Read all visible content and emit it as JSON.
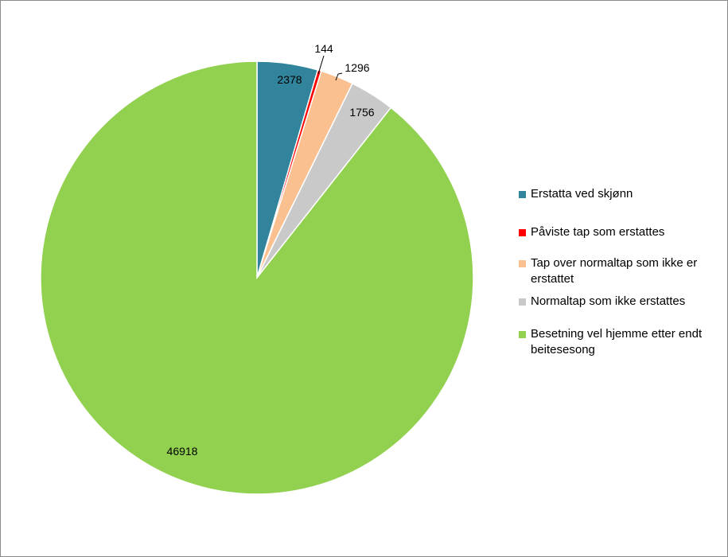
{
  "chart_data": {
    "type": "pie",
    "title": "",
    "legend_position": "right",
    "start_angle": "12 o'clock, clockwise",
    "slices": [
      {
        "label": "Erstatta ved skjønn",
        "value": 2378,
        "value_label": "2378",
        "color": "#31849b"
      },
      {
        "label": "Påviste tap som erstattes",
        "value": 144,
        "value_label": "144",
        "color": "#ff0000"
      },
      {
        "label": "Tap over normaltap som ikke er erstattet",
        "value": 1296,
        "value_label": "1296",
        "color": "#fac090"
      },
      {
        "label": "Normaltap som ikke erstattes",
        "value": 1756,
        "value_label": "1756",
        "color": "#c9c9c9"
      },
      {
        "label": "Besetning vel hjemme etter endt beitesesong",
        "value": 46918,
        "value_label": "46918",
        "color": "#92d050"
      }
    ]
  }
}
